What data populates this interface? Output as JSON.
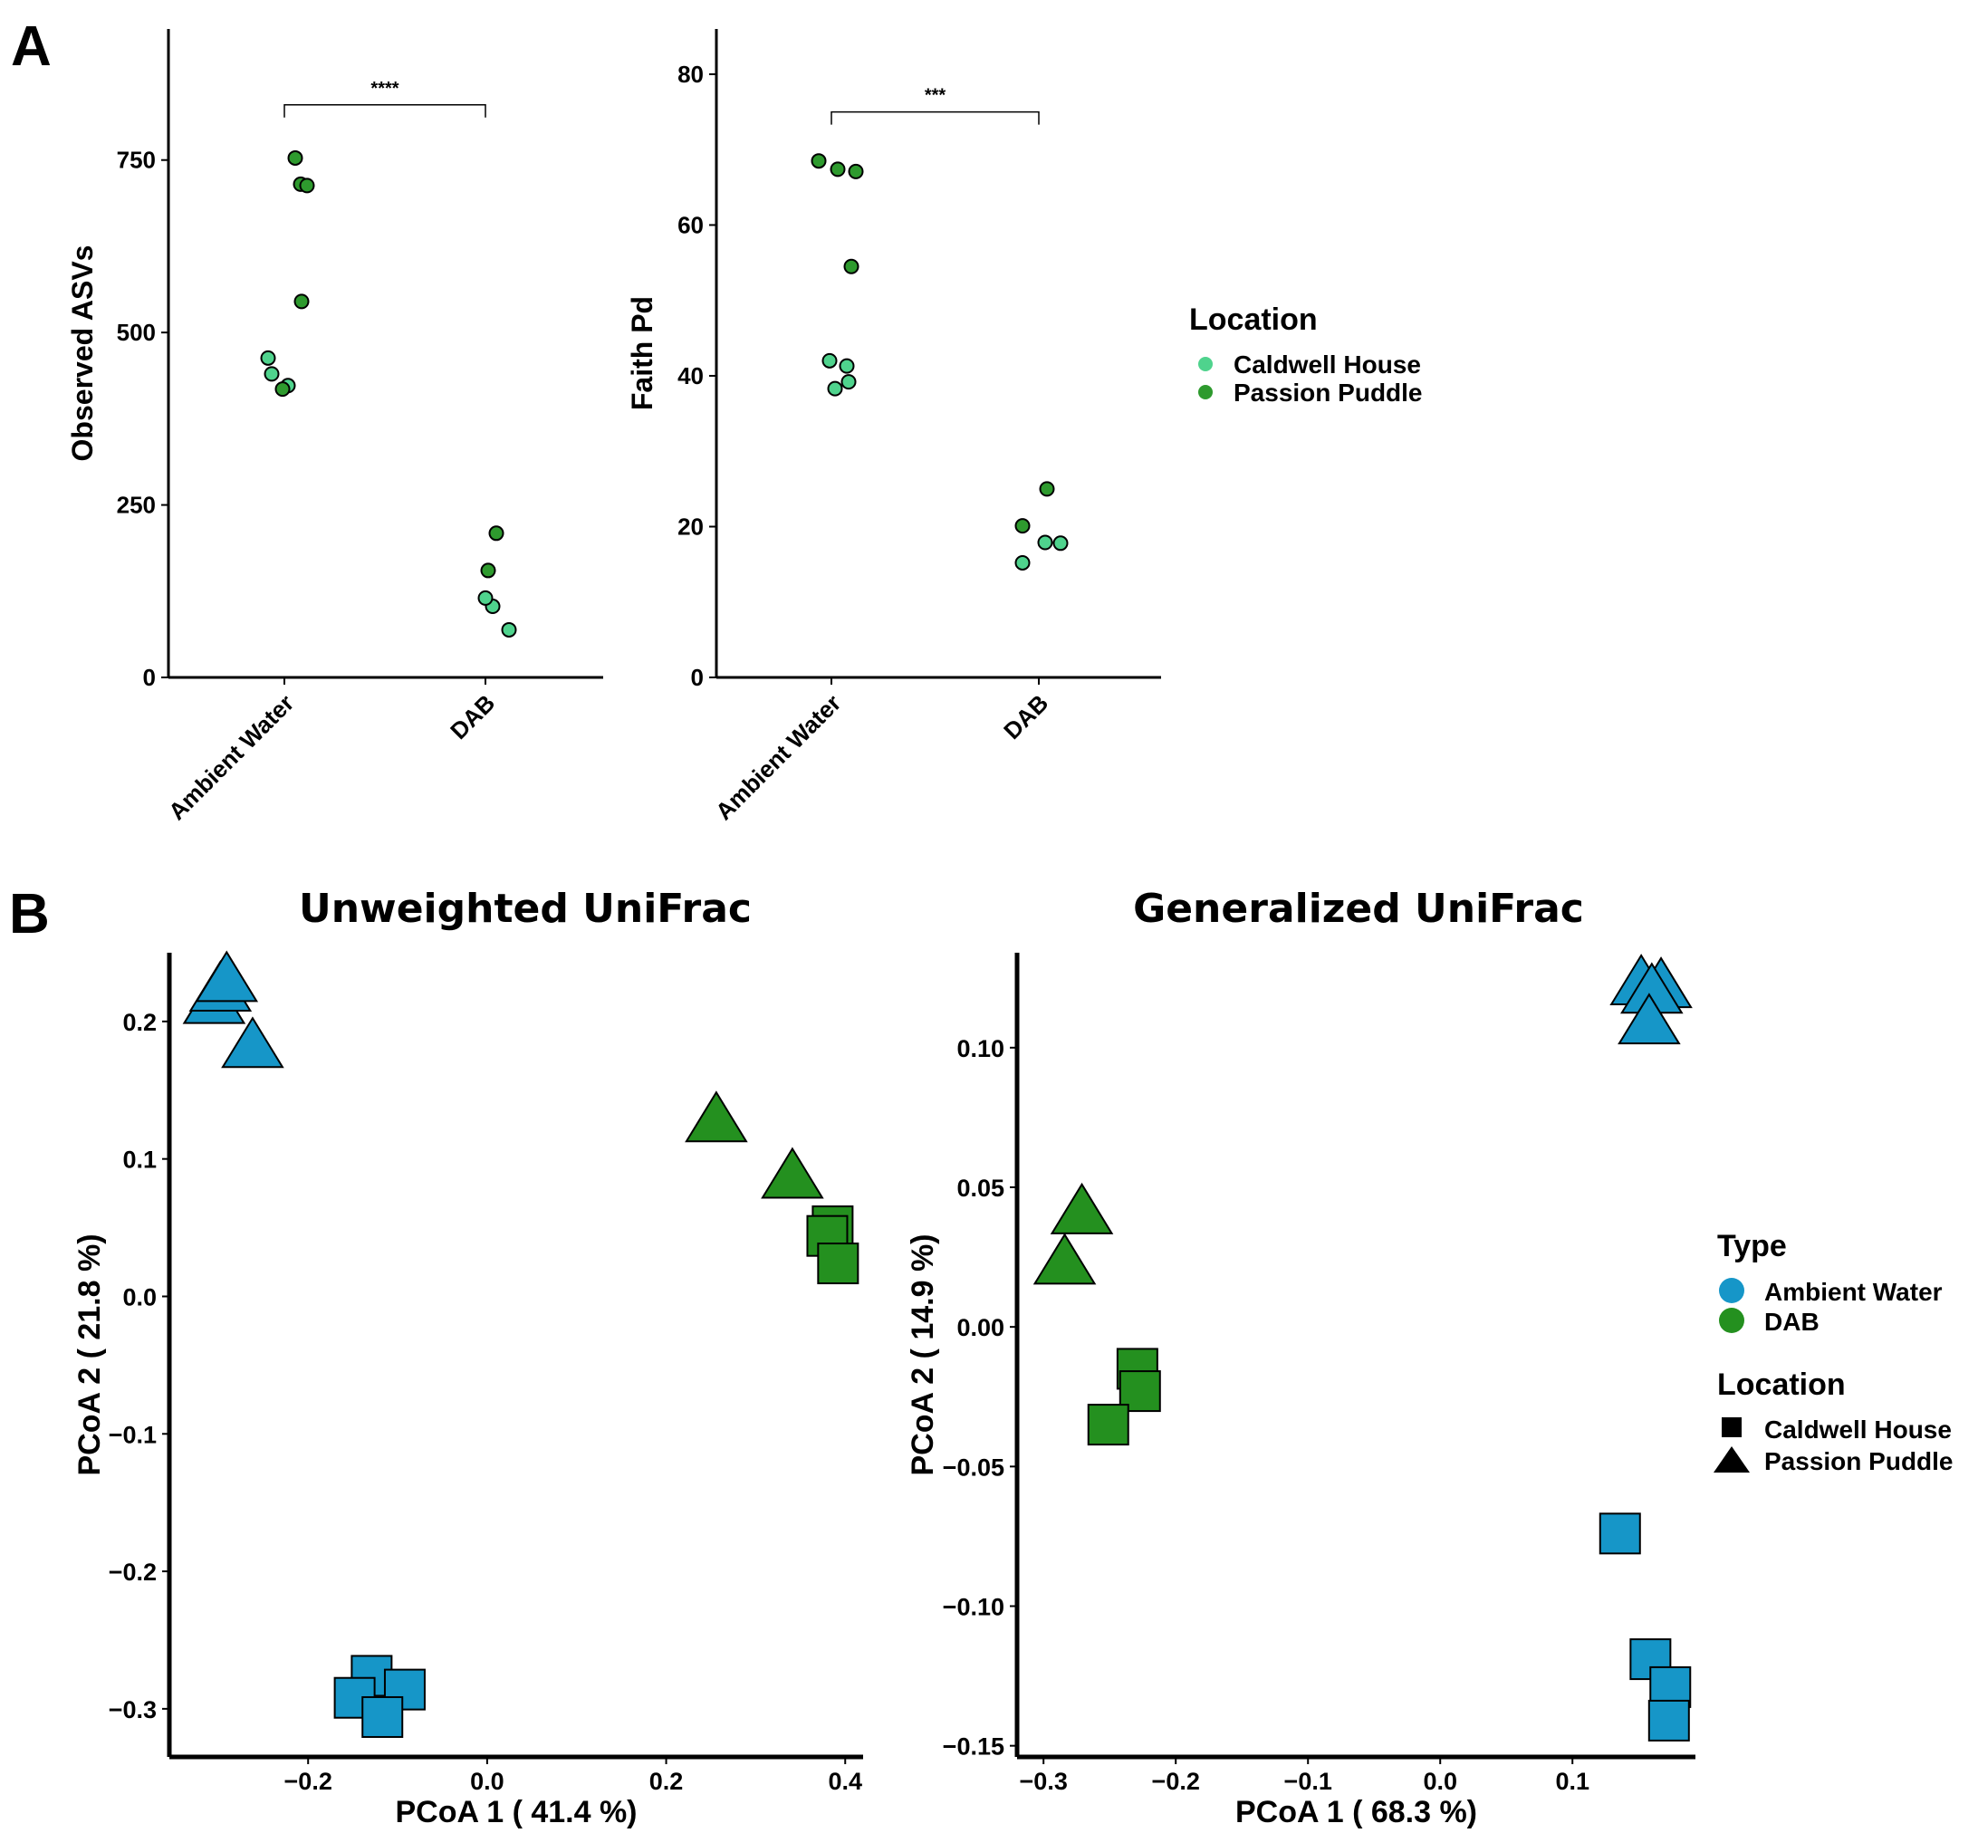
{
  "panel_a_letter": "A",
  "panel_b_letter": "B",
  "colors": {
    "caldwell_house": "#4fd38d",
    "passion_puddle": "#2e9a2e",
    "ambient_water": "#1696c8",
    "dab": "#24901f"
  },
  "legend_a": {
    "title": "Location",
    "items": [
      {
        "label": "Caldwell House",
        "color": "#4fd38d"
      },
      {
        "label": "Passion Puddle",
        "color": "#2e9a2e"
      }
    ]
  },
  "legend_b": {
    "type_title": "Type",
    "type_items": [
      {
        "label": "Ambient Water",
        "color": "#1696c8"
      },
      {
        "label": "DAB",
        "color": "#24901f"
      }
    ],
    "location_title": "Location",
    "location_items": [
      {
        "label": "Caldwell House",
        "shape": "square"
      },
      {
        "label": "Passion Puddle",
        "shape": "triangle"
      }
    ]
  },
  "chart_data": [
    {
      "type": "scatter",
      "title": "",
      "xlabel": "",
      "ylabel": "Observed ASVs",
      "categories": [
        "Ambient Water",
        "DAB"
      ],
      "ylim": [
        0,
        940
      ],
      "yticks": [
        0,
        250,
        500,
        750
      ],
      "significance": {
        "from": "Ambient Water",
        "to": "DAB",
        "label": "****",
        "y": 830
      },
      "series": [
        {
          "name": "Caldwell House",
          "points": [
            {
              "x": "Ambient Water",
              "y": 463
            },
            {
              "x": "Ambient Water",
              "y": 440
            },
            {
              "x": "Ambient Water",
              "y": 423
            },
            {
              "x": "DAB",
              "y": 103
            },
            {
              "x": "DAB",
              "y": 115
            },
            {
              "x": "DAB",
              "y": 69
            }
          ]
        },
        {
          "name": "Passion Puddle",
          "points": [
            {
              "x": "Ambient Water",
              "y": 753
            },
            {
              "x": "Ambient Water",
              "y": 715
            },
            {
              "x": "Ambient Water",
              "y": 713
            },
            {
              "x": "Ambient Water",
              "y": 545
            },
            {
              "x": "Ambient Water",
              "y": 418
            },
            {
              "x": "DAB",
              "y": 209
            },
            {
              "x": "DAB",
              "y": 155
            }
          ]
        }
      ]
    },
    {
      "type": "scatter",
      "title": "",
      "xlabel": "",
      "ylabel": "Faith Pd",
      "categories": [
        "Ambient Water",
        "DAB"
      ],
      "ylim": [
        0,
        86
      ],
      "yticks": [
        0,
        20,
        40,
        60,
        80
      ],
      "significance": {
        "from": "Ambient Water",
        "to": "DAB",
        "label": "***",
        "y": 75
      },
      "series": [
        {
          "name": "Caldwell House",
          "points": [
            {
              "x": "Ambient Water",
              "y": 42.0
            },
            {
              "x": "Ambient Water",
              "y": 41.3
            },
            {
              "x": "Ambient Water",
              "y": 38.3
            },
            {
              "x": "Ambient Water",
              "y": 39.2
            },
            {
              "x": "DAB",
              "y": 15.2
            },
            {
              "x": "DAB",
              "y": 17.9
            },
            {
              "x": "DAB",
              "y": 17.8
            }
          ]
        },
        {
          "name": "Passion Puddle",
          "points": [
            {
              "x": "Ambient Water",
              "y": 67.1
            },
            {
              "x": "Ambient Water",
              "y": 67.4
            },
            {
              "x": "Ambient Water",
              "y": 68.5
            },
            {
              "x": "Ambient Water",
              "y": 54.5
            },
            {
              "x": "DAB",
              "y": 20.1
            },
            {
              "x": "DAB",
              "y": 25.0
            }
          ]
        }
      ]
    },
    {
      "type": "scatter",
      "title": "Unweighted UniFrac",
      "xlabel": "PCoA 1 ( 41.4 %)",
      "ylabel": "PCoA 2 ( 21.8 %)",
      "xlim": [
        -0.355,
        0.42
      ],
      "ylim": [
        -0.335,
        0.25
      ],
      "xticks": [
        -0.2,
        0.0,
        0.2,
        0.4
      ],
      "xtick_labels": [
        "−0.2",
        "0.0",
        "0.2",
        "0.4"
      ],
      "yticks": [
        0.2,
        0.1,
        0.0,
        -0.1,
        -0.2,
        -0.3
      ],
      "ytick_labels": [
        "0.2",
        "0.1",
        "0.0",
        "−0.1",
        "−0.2",
        "−0.3"
      ],
      "points": [
        {
          "x": -0.305,
          "y": 0.212,
          "type": "Ambient Water",
          "location": "Passion Puddle"
        },
        {
          "x": -0.298,
          "y": 0.221,
          "type": "Ambient Water",
          "location": "Passion Puddle"
        },
        {
          "x": -0.291,
          "y": 0.228,
          "type": "Ambient Water",
          "location": "Passion Puddle"
        },
        {
          "x": -0.262,
          "y": 0.18,
          "type": "Ambient Water",
          "location": "Passion Puddle"
        },
        {
          "x": -0.129,
          "y": -0.276,
          "type": "Ambient Water",
          "location": "Caldwell House"
        },
        {
          "x": -0.092,
          "y": -0.286,
          "type": "Ambient Water",
          "location": "Caldwell House"
        },
        {
          "x": -0.148,
          "y": -0.292,
          "type": "Ambient Water",
          "location": "Caldwell House"
        },
        {
          "x": -0.117,
          "y": -0.306,
          "type": "Ambient Water",
          "location": "Caldwell House"
        },
        {
          "x": 0.256,
          "y": 0.126,
          "type": "DAB",
          "location": "Passion Puddle"
        },
        {
          "x": 0.341,
          "y": 0.085,
          "type": "DAB",
          "location": "Passion Puddle"
        },
        {
          "x": 0.386,
          "y": 0.051,
          "type": "DAB",
          "location": "Caldwell House"
        },
        {
          "x": 0.38,
          "y": 0.044,
          "type": "DAB",
          "location": "Caldwell House"
        },
        {
          "x": 0.392,
          "y": 0.024,
          "type": "DAB",
          "location": "Caldwell House"
        }
      ]
    },
    {
      "type": "scatter",
      "title": "Generalized UniFrac",
      "xlabel": "PCoA 1 ( 68.3 %)",
      "ylabel": "PCoA 2 ( 14.9 %)",
      "xlim": [
        -0.32,
        0.193
      ],
      "ylim": [
        -0.154,
        0.134
      ],
      "xticks": [
        -0.3,
        -0.2,
        -0.1,
        0.0,
        0.1
      ],
      "xtick_labels": [
        "−0.3",
        "−0.2",
        "−0.1",
        "0.0",
        "0.1"
      ],
      "yticks": [
        0.1,
        0.05,
        0.0,
        -0.05,
        -0.1,
        -0.15
      ],
      "ytick_labels": [
        "0.10",
        "0.05",
        "0.00",
        "−0.05",
        "−0.10",
        "−0.15"
      ],
      "points": [
        {
          "x": 0.152,
          "y": 0.122,
          "type": "Ambient Water",
          "location": "Passion Puddle"
        },
        {
          "x": 0.167,
          "y": 0.121,
          "type": "Ambient Water",
          "location": "Passion Puddle"
        },
        {
          "x": 0.16,
          "y": 0.119,
          "type": "Ambient Water",
          "location": "Passion Puddle"
        },
        {
          "x": 0.158,
          "y": 0.108,
          "type": "Ambient Water",
          "location": "Passion Puddle"
        },
        {
          "x": 0.136,
          "y": -0.074,
          "type": "Ambient Water",
          "location": "Caldwell House"
        },
        {
          "x": 0.159,
          "y": -0.119,
          "type": "Ambient Water",
          "location": "Caldwell House"
        },
        {
          "x": 0.174,
          "y": -0.129,
          "type": "Ambient Water",
          "location": "Caldwell House"
        },
        {
          "x": 0.173,
          "y": -0.141,
          "type": "Ambient Water",
          "location": "Caldwell House"
        },
        {
          "x": -0.271,
          "y": 0.04,
          "type": "DAB",
          "location": "Passion Puddle"
        },
        {
          "x": -0.284,
          "y": 0.022,
          "type": "DAB",
          "location": "Passion Puddle"
        },
        {
          "x": -0.229,
          "y": -0.015,
          "type": "DAB",
          "location": "Caldwell House"
        },
        {
          "x": -0.227,
          "y": -0.023,
          "type": "DAB",
          "location": "Caldwell House"
        },
        {
          "x": -0.251,
          "y": -0.035,
          "type": "DAB",
          "location": "Caldwell House"
        }
      ]
    }
  ]
}
